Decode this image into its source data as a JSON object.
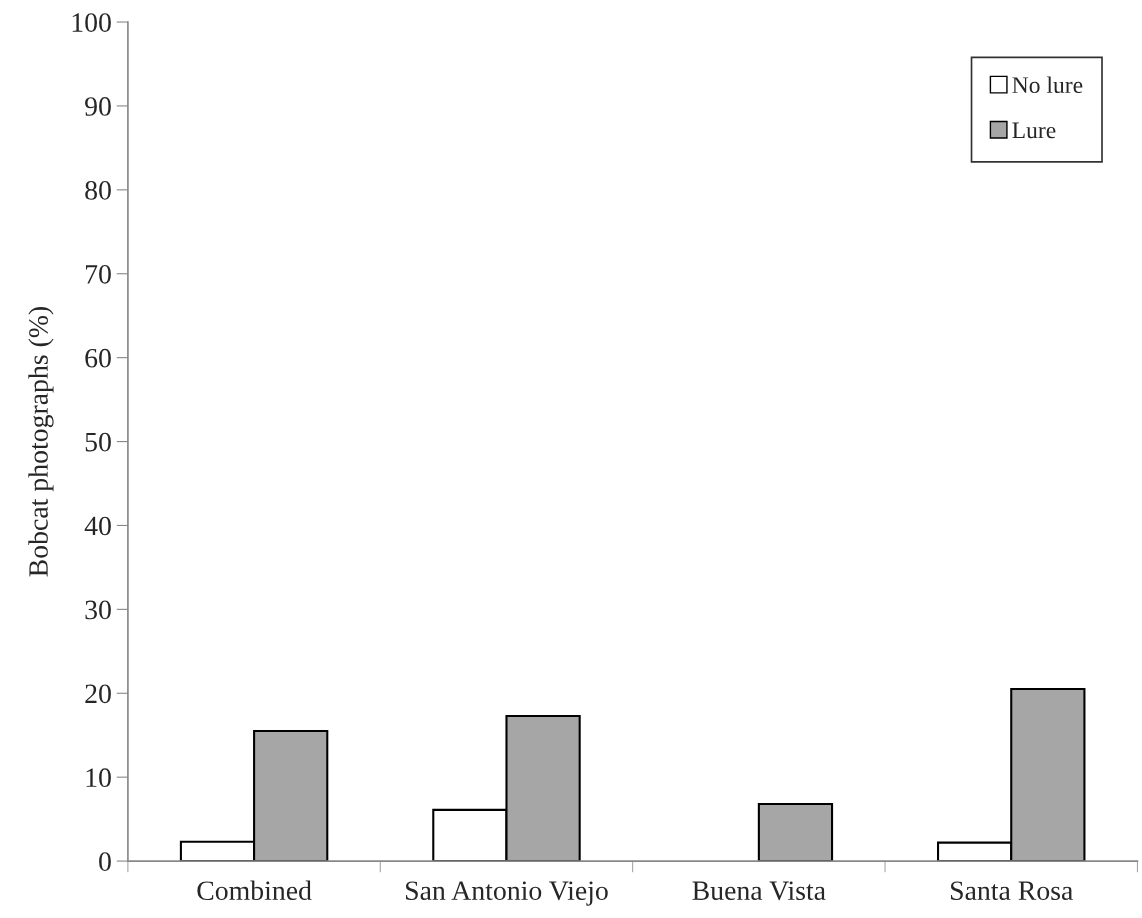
{
  "chart_data": {
    "type": "bar",
    "ylabel": "Bobcat photographs (%)",
    "categories": [
      "Combined",
      "San Antonio Viejo",
      "Buena Vista",
      "Santa Rosa"
    ],
    "series": [
      {
        "name": "No lure",
        "color": "#ffffff",
        "values": [
          2.3,
          6.1,
          null,
          2.2
        ]
      },
      {
        "name": "Lure",
        "color": "#a6a6a6",
        "values": [
          15.5,
          17.3,
          6.8,
          20.5
        ]
      }
    ],
    "ylim": [
      0,
      100
    ],
    "yticks": [
      0,
      10,
      20,
      30,
      40,
      50,
      60,
      70,
      80,
      90,
      100
    ],
    "grid": false,
    "legend": "top right"
  }
}
